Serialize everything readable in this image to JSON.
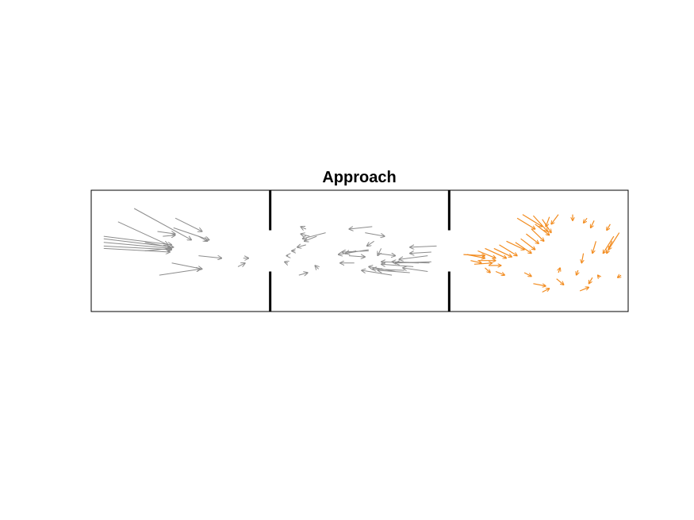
{
  "chart_data": {
    "type": "quiver",
    "title": "Approach",
    "xlabel": "",
    "ylabel": "",
    "xlim": [
      0,
      3
    ],
    "ylim": [
      0,
      1
    ],
    "grid": false,
    "axes_visible": false,
    "walls": [
      {
        "x": 1,
        "segments": [
          [
            0.0,
            0.33
          ],
          [
            0.67,
            1.0
          ]
        ]
      },
      {
        "x": 2,
        "segments": [
          [
            0.0,
            0.33
          ],
          [
            0.67,
            1.0
          ]
        ]
      }
    ],
    "colors": {
      "left": "#8c8c8c",
      "middle": "#8c8c8c",
      "right": "#f28b1e",
      "wall": "#000000",
      "frame": "#000000"
    },
    "series": [
      {
        "region": "left",
        "color": "#8c8c8c",
        "arrows": [
          [
            0.24,
            0.85,
            0.56,
            0.59
          ],
          [
            0.15,
            0.74,
            0.43,
            0.55
          ],
          [
            0.47,
            0.77,
            0.62,
            0.66
          ],
          [
            0.46,
            0.69,
            0.66,
            0.59
          ],
          [
            0.37,
            0.66,
            0.47,
            0.64
          ],
          [
            0.4,
            0.62,
            0.47,
            0.63
          ],
          [
            0.07,
            0.62,
            0.45,
            0.55
          ],
          [
            0.07,
            0.6,
            0.46,
            0.53
          ],
          [
            0.07,
            0.57,
            0.45,
            0.52
          ],
          [
            0.07,
            0.54,
            0.45,
            0.51
          ],
          [
            0.07,
            0.52,
            0.44,
            0.49
          ],
          [
            0.3,
            0.57,
            0.44,
            0.53
          ],
          [
            0.3,
            0.5,
            0.45,
            0.52
          ],
          [
            0.6,
            0.62,
            0.65,
            0.58
          ],
          [
            0.6,
            0.46,
            0.73,
            0.44
          ],
          [
            0.45,
            0.4,
            0.62,
            0.35
          ],
          [
            0.85,
            0.44,
            0.88,
            0.44
          ],
          [
            0.82,
            0.37,
            0.86,
            0.4
          ],
          [
            0.38,
            0.3,
            0.61,
            0.35
          ]
        ]
      },
      {
        "region": "middle",
        "color": "#8c8c8c",
        "arrows": [
          [
            1.31,
            0.65,
            1.18,
            0.6
          ],
          [
            1.26,
            0.62,
            1.19,
            0.58
          ],
          [
            1.22,
            0.62,
            1.17,
            0.64
          ],
          [
            1.2,
            0.68,
            1.17,
            0.7
          ],
          [
            1.2,
            0.55,
            1.15,
            0.53
          ],
          [
            1.55,
            0.51,
            1.38,
            0.47
          ],
          [
            1.55,
            0.5,
            1.4,
            0.49
          ],
          [
            1.48,
            0.5,
            1.42,
            0.48
          ],
          [
            1.58,
            0.58,
            1.54,
            0.54
          ],
          [
            1.53,
            0.65,
            1.64,
            0.62
          ],
          [
            1.57,
            0.7,
            1.44,
            0.68
          ],
          [
            1.6,
            0.48,
            1.7,
            0.46
          ],
          [
            1.62,
            0.52,
            1.6,
            0.46
          ],
          [
            1.93,
            0.54,
            1.78,
            0.53
          ],
          [
            1.9,
            0.49,
            1.78,
            0.48
          ],
          [
            1.88,
            0.46,
            1.72,
            0.43
          ],
          [
            1.9,
            0.41,
            1.7,
            0.4
          ],
          [
            1.89,
            0.4,
            1.68,
            0.41
          ],
          [
            1.83,
            0.4,
            1.62,
            0.41
          ],
          [
            1.8,
            0.37,
            1.62,
            0.39
          ],
          [
            1.75,
            0.34,
            1.57,
            0.35
          ],
          [
            1.7,
            0.33,
            1.55,
            0.37
          ],
          [
            1.68,
            0.3,
            1.51,
            0.34
          ],
          [
            1.78,
            0.32,
            1.6,
            0.34
          ],
          [
            1.88,
            0.33,
            1.74,
            0.36
          ],
          [
            1.47,
            0.4,
            1.39,
            0.4
          ],
          [
            1.44,
            0.46,
            1.53,
            0.45
          ],
          [
            1.27,
            0.35,
            1.25,
            0.38
          ],
          [
            1.1,
            0.46,
            1.09,
            0.46
          ],
          [
            1.14,
            0.5,
            1.12,
            0.5
          ],
          [
            1.16,
            0.3,
            1.21,
            0.32
          ],
          [
            1.1,
            0.4,
            1.08,
            0.41
          ]
        ]
      },
      {
        "region": "right",
        "color": "#f28b1e",
        "arrows": [
          [
            2.38,
            0.77,
            2.48,
            0.68
          ],
          [
            2.41,
            0.8,
            2.52,
            0.7
          ],
          [
            2.47,
            0.79,
            2.55,
            0.66
          ],
          [
            2.52,
            0.76,
            2.57,
            0.65
          ],
          [
            2.48,
            0.72,
            2.56,
            0.63
          ],
          [
            2.46,
            0.68,
            2.53,
            0.58
          ],
          [
            2.43,
            0.64,
            2.5,
            0.56
          ],
          [
            2.4,
            0.6,
            2.48,
            0.51
          ],
          [
            2.37,
            0.57,
            2.46,
            0.48
          ],
          [
            2.32,
            0.58,
            2.42,
            0.51
          ],
          [
            2.28,
            0.55,
            2.38,
            0.46
          ],
          [
            2.25,
            0.52,
            2.35,
            0.45
          ],
          [
            2.2,
            0.52,
            2.32,
            0.44
          ],
          [
            2.16,
            0.5,
            2.26,
            0.44
          ],
          [
            2.1,
            0.47,
            2.2,
            0.44
          ],
          [
            2.16,
            0.42,
            2.26,
            0.42
          ],
          [
            2.14,
            0.39,
            2.24,
            0.4
          ],
          [
            2.22,
            0.38,
            2.29,
            0.38
          ],
          [
            2.08,
            0.47,
            2.2,
            0.46
          ],
          [
            2.12,
            0.42,
            2.18,
            0.4
          ],
          [
            2.2,
            0.36,
            2.23,
            0.32
          ],
          [
            2.26,
            0.33,
            2.31,
            0.3
          ],
          [
            2.42,
            0.32,
            2.46,
            0.29
          ],
          [
            2.47,
            0.23,
            2.54,
            0.21
          ],
          [
            2.52,
            0.16,
            2.56,
            0.19
          ],
          [
            2.6,
            0.27,
            2.64,
            0.22
          ],
          [
            2.61,
            0.32,
            2.62,
            0.36
          ],
          [
            2.73,
            0.17,
            2.78,
            0.2
          ],
          [
            2.8,
            0.28,
            2.78,
            0.23
          ],
          [
            2.84,
            0.28,
            2.83,
            0.3
          ],
          [
            2.72,
            0.34,
            2.71,
            0.3
          ],
          [
            2.75,
            0.48,
            2.74,
            0.4
          ],
          [
            2.82,
            0.58,
            2.8,
            0.48
          ],
          [
            2.91,
            0.58,
            2.88,
            0.48
          ],
          [
            2.9,
            0.72,
            2.88,
            0.67
          ],
          [
            2.81,
            0.75,
            2.79,
            0.69
          ],
          [
            2.77,
            0.77,
            2.75,
            0.73
          ],
          [
            2.69,
            0.8,
            2.69,
            0.75
          ],
          [
            2.61,
            0.8,
            2.57,
            0.72
          ],
          [
            2.56,
            0.78,
            2.54,
            0.7
          ],
          [
            2.92,
            0.62,
            2.86,
            0.48
          ],
          [
            2.95,
            0.65,
            2.89,
            0.51
          ],
          [
            2.96,
            0.3,
            2.94,
            0.28
          ]
        ]
      }
    ]
  }
}
